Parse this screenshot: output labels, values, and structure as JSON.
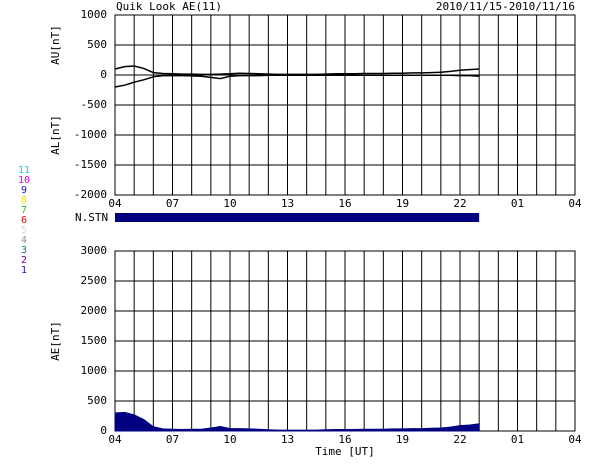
{
  "header": {
    "title": "Quik Look AE(11)",
    "date_range": "2010/11/15-2010/11/16"
  },
  "station_legend": [
    {
      "label": "11",
      "color": "#00d8d8"
    },
    {
      "label": "10",
      "color": "#e000e0"
    },
    {
      "label": "9",
      "color": "#2020c0"
    },
    {
      "label": "8",
      "color": "#e8e800"
    },
    {
      "label": "7",
      "color": "#20c020"
    },
    {
      "label": "6",
      "color": "#e00000"
    },
    {
      "label": "5",
      "color": "#d8d8d8"
    },
    {
      "label": "4",
      "color": "#909090"
    },
    {
      "label": "3",
      "color": "#008080"
    },
    {
      "label": "2",
      "color": "#800080"
    },
    {
      "label": "1",
      "color": "#2020a0"
    }
  ],
  "chart_data": [
    {
      "type": "line",
      "ylabel_upper": "AU[nT]",
      "ylabel_lower": "AL[nT]",
      "xlim": [
        0,
        24
      ],
      "xticks": [
        {
          "value": 0,
          "label": "04"
        },
        {
          "value": 3,
          "label": "07"
        },
        {
          "value": 6,
          "label": "10"
        },
        {
          "value": 9,
          "label": "13"
        },
        {
          "value": 12,
          "label": "16"
        },
        {
          "value": 15,
          "label": "19"
        },
        {
          "value": 18,
          "label": "22"
        },
        {
          "value": 21,
          "label": "01"
        },
        {
          "value": 24,
          "label": "04"
        }
      ],
      "x_gridlines": [
        1,
        2,
        4,
        5,
        7,
        8,
        10,
        11,
        13,
        14,
        16,
        17,
        19,
        20,
        22,
        23
      ],
      "ylim": [
        -2000,
        1000
      ],
      "yticks": [
        -2000,
        -1500,
        -1000,
        -500,
        0,
        500,
        1000
      ],
      "x": [
        0,
        0.5,
        1,
        1.5,
        2,
        2.5,
        3,
        3.5,
        4,
        4.5,
        5,
        5.5,
        6,
        6.5,
        7,
        7.5,
        8,
        8.5,
        9,
        9.5,
        10,
        10.5,
        11,
        11.5,
        12,
        12.5,
        13,
        13.5,
        14,
        14.5,
        15,
        15.5,
        16,
        16.5,
        17,
        17.5,
        18,
        18.5,
        19
      ],
      "series": [
        {
          "color": "#000000",
          "values": [
            100,
            140,
            150,
            110,
            40,
            25,
            20,
            15,
            15,
            10,
            10,
            15,
            20,
            30,
            25,
            20,
            15,
            10,
            10,
            10,
            10,
            10,
            15,
            20,
            20,
            20,
            25,
            25,
            25,
            30,
            30,
            35,
            35,
            40,
            45,
            60,
            80,
            90,
            100
          ]
        },
        {
          "color": "#000000",
          "values": [
            -200,
            -170,
            -120,
            -80,
            -30,
            -10,
            -10,
            -10,
            -15,
            -20,
            -40,
            -60,
            -20,
            -10,
            -10,
            -10,
            -5,
            -5,
            -5,
            -5,
            -5,
            -5,
            -5,
            -5,
            -5,
            -5,
            -5,
            -5,
            -5,
            -5,
            -5,
            -5,
            -5,
            -5,
            -5,
            -5,
            -10,
            -10,
            -20
          ]
        }
      ],
      "stations_bar": {
        "label": "N.STN",
        "start": 0,
        "end": 19,
        "color": "#000080"
      }
    },
    {
      "type": "area",
      "ylabel": "AE[nT]",
      "xlabel": "Time [UT]",
      "xlim": [
        0,
        24
      ],
      "xticks": [
        {
          "value": 0,
          "label": "04"
        },
        {
          "value": 3,
          "label": "07"
        },
        {
          "value": 6,
          "label": "10"
        },
        {
          "value": 9,
          "label": "13"
        },
        {
          "value": 12,
          "label": "16"
        },
        {
          "value": 15,
          "label": "19"
        },
        {
          "value": 18,
          "label": "22"
        },
        {
          "value": 21,
          "label": "01"
        },
        {
          "value": 24,
          "label": "04"
        }
      ],
      "x_gridlines": [
        1,
        2,
        4,
        5,
        7,
        8,
        10,
        11,
        13,
        14,
        16,
        17,
        19,
        20,
        22,
        23
      ],
      "ylim": [
        0,
        3000
      ],
      "yticks": [
        0,
        500,
        1000,
        1500,
        2000,
        2500,
        3000
      ],
      "x": [
        0,
        0.5,
        1,
        1.5,
        2,
        2.5,
        3,
        3.5,
        4,
        4.5,
        5,
        5.5,
        6,
        6.5,
        7,
        7.5,
        8,
        8.5,
        9,
        9.5,
        10,
        10.5,
        11,
        11.5,
        12,
        12.5,
        13,
        13.5,
        14,
        14.5,
        15,
        15.5,
        16,
        16.5,
        17,
        17.5,
        18,
        18.5,
        19
      ],
      "series": [
        {
          "color": "#000080",
          "values": [
            300,
            310,
            270,
            190,
            70,
            35,
            30,
            25,
            30,
            30,
            50,
            75,
            40,
            40,
            35,
            30,
            20,
            15,
            15,
            15,
            15,
            15,
            20,
            25,
            25,
            25,
            30,
            30,
            30,
            35,
            35,
            40,
            40,
            45,
            50,
            65,
            90,
            100,
            120
          ]
        }
      ]
    }
  ]
}
